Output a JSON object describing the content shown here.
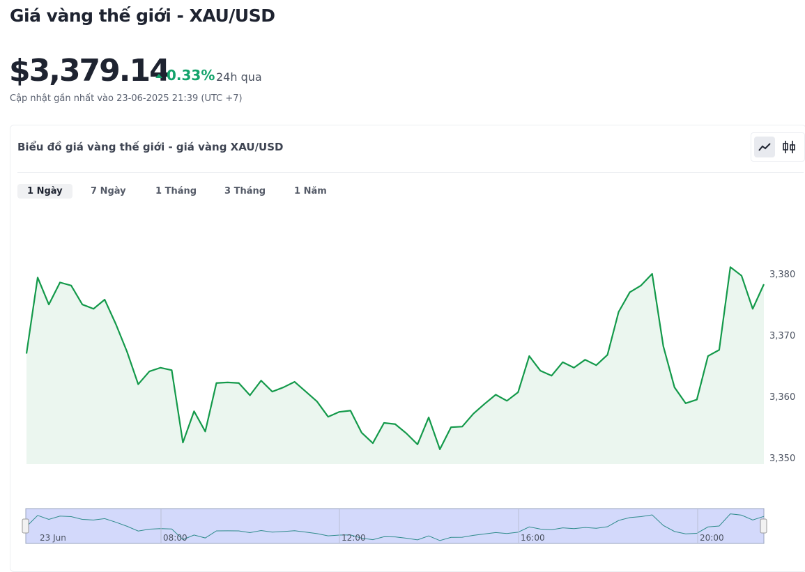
{
  "header": {
    "title": "Giá vàng thế giới - XAU/USD",
    "price": "$3,379.14",
    "change": "0.33%",
    "change_period": "24h qua",
    "updated": "Cập nhật gần nhất vào 23-06-2025 21:39 (UTC +7)"
  },
  "card": {
    "title": "Biểu đồ giá vàng thế giới - giá vàng XAU/USD",
    "tabs": [
      "1 Ngày",
      "7 Ngày",
      "1 Tháng",
      "3 Tháng",
      "1 Năm"
    ],
    "active_tab": 0
  },
  "chart_data": {
    "type": "line",
    "color": "#13994a",
    "fill": "#ebf6ef",
    "series": [
      {
        "values": [
          3367.0,
          3379.4,
          3375.0,
          3378.6,
          3378.1,
          3375.0,
          3374.3,
          3375.8,
          3371.8,
          3367.3,
          3362.0,
          3364.1,
          3364.7,
          3364.3,
          3352.5,
          3357.6,
          3354.3,
          3362.2,
          3362.3,
          3362.2,
          3360.2,
          3362.6,
          3360.8,
          3361.5,
          3362.4,
          3360.8,
          3359.2,
          3356.7,
          3357.5,
          3357.7,
          3354.1,
          3352.4,
          3355.7,
          3355.5,
          3354.0,
          3352.2,
          3356.6,
          3351.4,
          3355.0,
          3355.1,
          3357.2,
          3358.8,
          3360.3,
          3359.3,
          3360.7,
          3366.6,
          3364.2,
          3363.4,
          3365.6,
          3364.7,
          3366.0,
          3365.1,
          3366.8,
          3373.8,
          3377.0,
          3378.1,
          3380.0,
          3368.2,
          3361.5,
          3358.9,
          3359.5,
          3366.6,
          3367.6,
          3381.1,
          3379.7,
          3374.3,
          3378.3
        ]
      }
    ],
    "ylim": [
      3349,
      3390
    ],
    "yticks": [
      {
        "value": 3350,
        "label": "3,350"
      },
      {
        "value": 3360,
        "label": "3,360"
      },
      {
        "value": 3370,
        "label": "3,370"
      },
      {
        "value": 3380,
        "label": "3,380"
      }
    ],
    "navigator_labels": [
      "23 Jun",
      "08:00",
      "12:00",
      "16:00",
      "20:00"
    ]
  }
}
